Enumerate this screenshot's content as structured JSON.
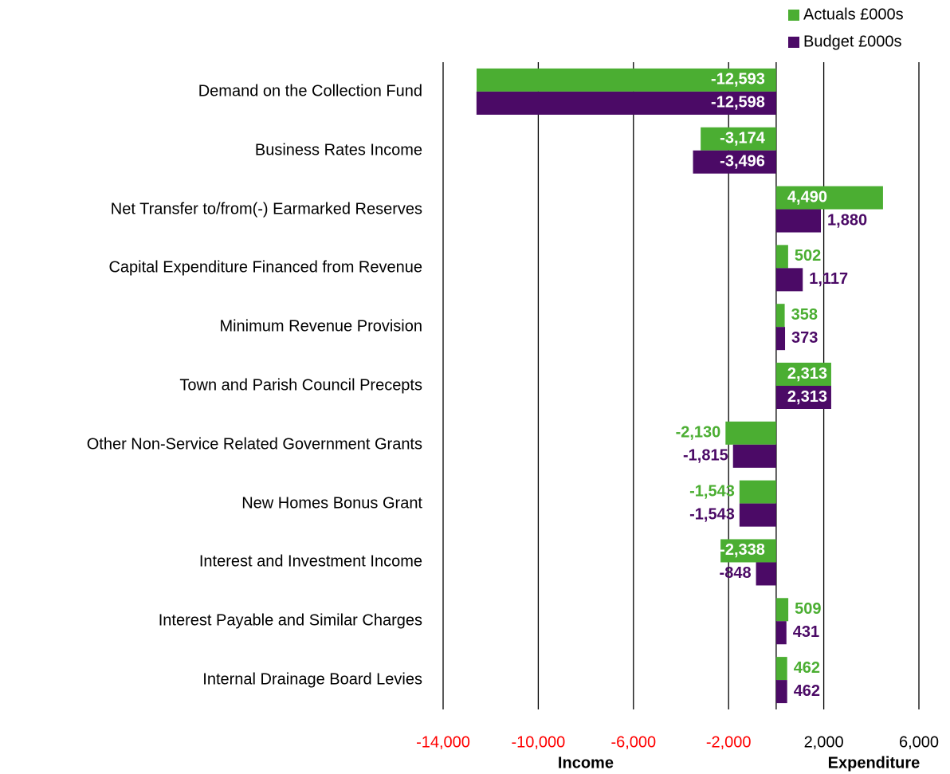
{
  "chart_data": {
    "type": "hbar",
    "categories": [
      "Demand on the Collection Fund",
      "Business Rates Income",
      "Net Transfer to/from(-) Earmarked Reserves",
      "Capital Expenditure Financed from Revenue",
      "Minimum Revenue Provision",
      "Town and Parish Council Precepts",
      "Other Non-Service Related Government Grants",
      "New Homes Bonus Grant",
      "Interest and Investment Income",
      "Interest Payable and Similar Charges",
      "Internal Drainage Board Levies"
    ],
    "series": [
      {
        "name": "Actuals £000s",
        "color": "#4bae32",
        "values": [
          -12593,
          -3174,
          4490,
          502,
          358,
          2313,
          -2130,
          -1543,
          -2338,
          509,
          462
        ],
        "value_labels": [
          "-12,593",
          "-3,174",
          "4,490",
          "502",
          "358",
          "2,313",
          "-2,130",
          "-1,543",
          "-2,338",
          "509",
          "462"
        ]
      },
      {
        "name": "Budget £000s",
        "color": "#4b0a66",
        "values": [
          -12598,
          -3496,
          1880,
          1117,
          373,
          2313,
          -1815,
          -1543,
          -848,
          431,
          462
        ],
        "value_labels": [
          "-12,598",
          "-3,496",
          "1,880",
          "1,117",
          "373",
          "2,313",
          "-1,815",
          "-1,543",
          "-848",
          "431",
          "462"
        ]
      }
    ],
    "xlim": [
      -14000,
      6000
    ],
    "xticks": [
      {
        "value": -14000,
        "label": "-14,000"
      },
      {
        "value": -10000,
        "label": "-10,000"
      },
      {
        "value": -6000,
        "label": "-6,000"
      },
      {
        "value": -2000,
        "label": "-2,000"
      },
      {
        "value": 2000,
        "label": "2,000"
      },
      {
        "value": 6000,
        "label": "6,000"
      }
    ],
    "negative_tick_color": "#ff0000",
    "x_labels": {
      "negative": "Income",
      "positive": "Expenditure"
    },
    "grid": true,
    "legend": "top-right"
  }
}
